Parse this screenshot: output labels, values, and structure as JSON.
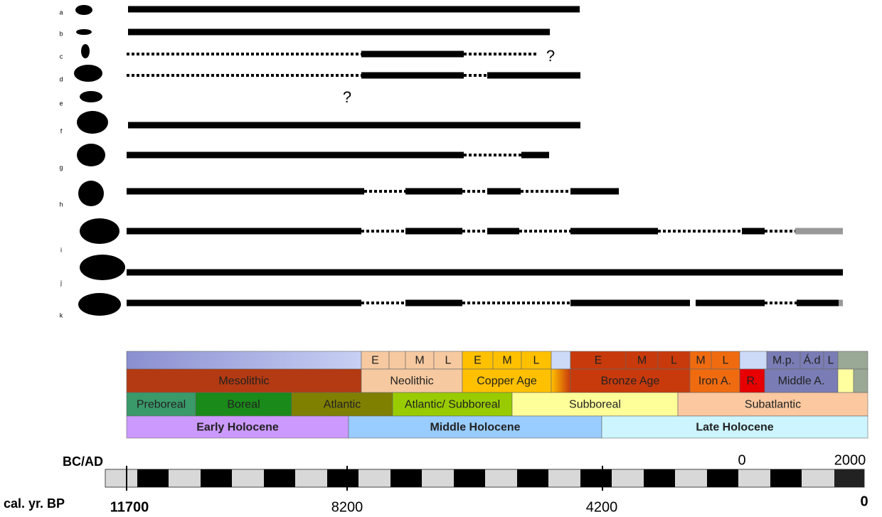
{
  "species_labels": [
    "a",
    "b",
    "c",
    "d",
    "e",
    "f",
    "g",
    "h",
    "i",
    "j",
    "k"
  ],
  "uncertainty_marks": [
    "?",
    "?"
  ],
  "periods": {
    "row1": [
      "E",
      "M",
      "L",
      "E",
      "M",
      "L",
      "E",
      "M",
      "L",
      "M",
      "L",
      "M.p.",
      "Á.d",
      "L"
    ],
    "row2": [
      "Mesolithic",
      "Neolithic",
      "Copper Age",
      "Bronze Age",
      "Iron A.",
      "R.",
      "Middle A."
    ],
    "row3": [
      "Preboreal",
      "Boreal",
      "Atlantic",
      "Atlantic/ Subboreal",
      "Subboreal",
      "Subatlantic"
    ],
    "row4": [
      "Early Holocene",
      "Middle Holocene",
      "Late Holocene"
    ]
  },
  "scale": {
    "bc_ad_label": "BC/AD",
    "bc_ad_ticks": [
      "0",
      "2000"
    ],
    "bp_label": "cal. yr. BP",
    "bp_ticks": [
      "11700",
      "8200",
      "4200",
      "0"
    ]
  }
}
